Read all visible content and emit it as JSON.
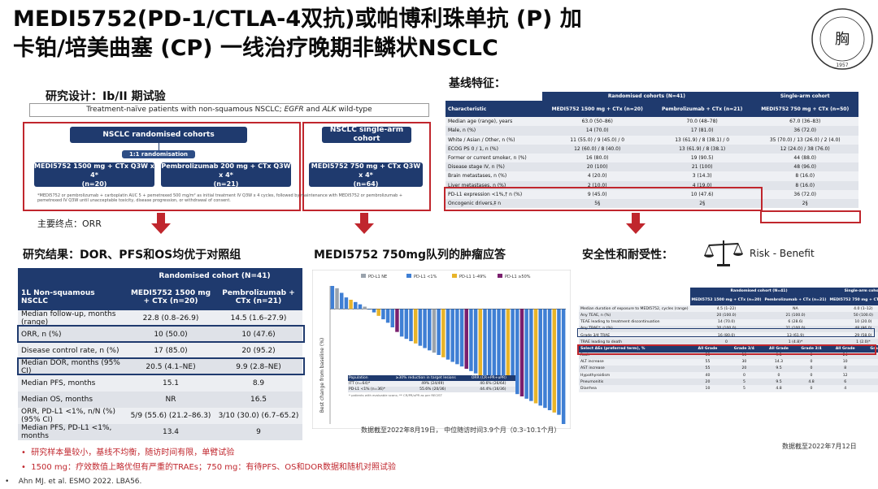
{
  "title": {
    "line1": "MEDI5752(PD-1/CTLA-4双抗)或帕博利珠单抗 (P) 加",
    "line2": "卡铂/培美曲塞 (CP) 一线治疗晚期非鳞状NSCLC"
  },
  "logo": {
    "icon": "shanghai-chest-hospital-seal",
    "year": "1957"
  },
  "design": {
    "heading": "研究设计：Ib/II 期试验",
    "population_pre": "Treatment-naïve patients with non-squamous NSCLC; ",
    "population_egfr": "EGFR",
    "population_and": " and ",
    "population_alk": "ALK",
    "population_post": " wild-type",
    "randomised_label": "NSCLC randomised cohorts",
    "randomisation": "1:1 randomisation",
    "arm_a_l1": "MEDI5752 1500 mg + CTx Q3W x 4*",
    "arm_a_l2": "(n=20)",
    "arm_b_l1": "Pembrolizumab 200 mg + CTx Q3W x 4*",
    "arm_b_l2": "(n=21)",
    "single_label": "NSCLC single-arm cohort",
    "single_l1": "MEDI5752 750 mg + CTx Q3W x 4*",
    "single_l2": "(n=64)",
    "footnote": "*MEDI5752 or pembrolizumab + carboplatin AUC 5 + pemetrexed 500 mg/m² as initial treatment IV Q3W x 4 cycles, followed by maintenance with MEDI5752 or pembrolizumab + pemetrexed IV Q3W until unacceptable toxicity, disease progression, or withdrawal of consent.",
    "endpoint": "主要终点：ORR"
  },
  "results": {
    "heading": "研究结果：DOR、PFS和OS均优于对照组",
    "header_group": "Randomised cohort (N=41)",
    "col0": "1L Non-squamous NSCLC",
    "col1": "MEDI5752 1500 mg + CTx (n=20)",
    "col2": "Pembrolizumab + CTx (n=21)",
    "rows": [
      [
        "Median follow-up, months (range)",
        "22.8 (0.8–26.9)",
        "14.5 (1.6–27.9)"
      ],
      [
        "ORR, n (%)",
        "10 (50.0)",
        "10 (47.6)"
      ],
      [
        "Disease control rate, n (%)",
        "17 (85.0)",
        "20 (95.2)"
      ],
      [
        "Median DOR, months (95% CI)",
        "20.5 (4.1–NE)",
        "9.9 (2.8–NE)"
      ],
      [
        "Median PFS, months",
        "15.1",
        "8.9"
      ],
      [
        "Median OS, months",
        "NR",
        "16.5"
      ],
      [
        "ORR, PD-L1 <1%, n/N (%) (95% CI)",
        "5/9 (55.6) (21.2–86.3)",
        "3/10 (30.0) (6.7–65.2)"
      ],
      [
        "Median PFS, PD-L1 <1%, months",
        "13.4",
        "9"
      ]
    ]
  },
  "waterfall": {
    "heading": "MEDI5752 750mg队列的肿瘤应答",
    "legend": [
      "PD-L1 NE",
      "PD-L1 <1%",
      "PD-L1 1–49%",
      "PD-L1 ≥50%"
    ],
    "ylabel": "Best change from baseline (%)",
    "inset_headers": [
      "Population",
      "≥30% reduction in target lesions",
      "ORR (CR+PR+uPR)"
    ],
    "inset_rows": [
      [
        "ITT (n=64)*",
        "49% (24/49)",
        "40.6% (26/64)"
      ],
      [
        "PD-L1 <1% (n=36)*",
        "55.6% (20/36)",
        "44.4% (16/36)"
      ]
    ],
    "inset_foot": "* patients with evaluable scans; ** CR/PR/uPR as per RECIST",
    "note": "数据截至2022年8月19日， 中位随访时间3.9个月（0.3–10.1个月）"
  },
  "chart_data": {
    "type": "bar",
    "title": "",
    "xlabel": "",
    "ylabel": "Best change from baseline (%)",
    "ylim": [
      -100,
      20
    ],
    "series_colors": {
      "PD-L1 NE": "#9aa3ad",
      "PD-L1 <1%": "#3f7fd4",
      "PD-L1 1–49%": "#e8b429",
      "PD-L1 ≥50%": "#7a1f6e"
    },
    "values": [
      20,
      18,
      14,
      10,
      8,
      6,
      4,
      2,
      0,
      -3,
      -6,
      -9,
      -12,
      -16,
      -20,
      -24,
      -26,
      -28,
      -30,
      -32,
      -34,
      -36,
      -38,
      -40,
      -42,
      -44,
      -46,
      -48,
      -50,
      -52,
      -54,
      -56,
      -58,
      -60,
      -62,
      -64,
      -66,
      -68,
      -70,
      -72,
      -74,
      -76,
      -78,
      -80,
      -82,
      -84,
      -86,
      -88,
      -90,
      -92,
      -100
    ],
    "groups": [
      1,
      0,
      1,
      1,
      2,
      1,
      1,
      0,
      1,
      1,
      2,
      1,
      1,
      1,
      3,
      1,
      1,
      1,
      2,
      1,
      1,
      1,
      0,
      1,
      2,
      1,
      1,
      1,
      1,
      3,
      1,
      1,
      2,
      1,
      1,
      1,
      1,
      1,
      2,
      1,
      1,
      3,
      1,
      1,
      2,
      1,
      1,
      1,
      2,
      1,
      1
    ]
  },
  "baseline": {
    "heading": "基线特征：",
    "group_rand": "Randomised cohorts (N=41)",
    "group_single": "Single-arm cohort",
    "col0": "Characteristic",
    "col1": "MEDI5752 1500 mg + CTx (n=20)",
    "col2": "Pembrolizumab + CTx (n=21)",
    "col3": "MEDI5752 750 mg + CTx (n=50)",
    "rows": [
      [
        "Median age (range), years",
        "63.0 (50–86)",
        "70.0 (48–78)",
        "67.0 (36–83)"
      ],
      [
        "Male, n (%)",
        "14 (70.0)",
        "17 (81.0)",
        "36 (72.0)"
      ],
      [
        "White / Asian / Other, n (%)",
        "11 (55.0) / 9 (45.0) / 0",
        "13 (61.9) / 8 (38.1) / 0",
        "35 (70.0) / 13 (26.0) / 2 (4.0)"
      ],
      [
        "ECOG PS 0 / 1, n (%)",
        "12 (60.0) / 8 (40.0)",
        "13 (61.9) / 8 (38.1)",
        "12 (24.0) / 38 (76.0)"
      ],
      [
        "Former or current smoker, n (%)",
        "16 (80.0)",
        "19 (90.5)",
        "44 (88.0)"
      ],
      [
        "Disease stage IV, n (%)",
        "20 (100)",
        "21 (100)",
        "48 (96.0)"
      ],
      [
        "Brain metastases, n (%)",
        "4 (20.0)",
        "3 (14.3)",
        "8 (16.0)"
      ],
      [
        "Liver metastases, n (%)",
        "2 (10.0)",
        "4 (19.0)",
        "8 (16.0)"
      ],
      [
        "PD-L1 expression <1%,† n (%)",
        "9 (45.0)",
        "10 (47.6)",
        "36 (72.0)"
      ],
      [
        "Oncogenic drivers,‡ n",
        "5§",
        "2§",
        "2§"
      ]
    ]
  },
  "safety": {
    "heading": "安全性和耐受性：",
    "risk_label": "Risk - Benefit",
    "group_rand": "Randomised cohort (N=41)",
    "group_single": "Single-arm cohort",
    "col1": "MEDI5752 1500 mg + CTx (n=20)",
    "col2": "Pembrolizumab + CTx (n=21)",
    "col3": "MEDI5752 750 mg + CTx (n=50)",
    "rows_top": [
      [
        "Median duration of exposure to MEDI5752, cycles (range)",
        "4.5 (1–22)",
        "NA",
        "4.0 (1–12)"
      ],
      [
        "Any TEAE, n (%)",
        "20 (100.0)",
        "21 (100.0)",
        "50 (100.0)"
      ],
      [
        "TEAE leading to treatment discontinuation",
        "14 (70.0)",
        "6 (28.6)",
        "10 (20.0)"
      ],
      [
        "Any TRAE*, n (%)",
        "20 (100.0)",
        "21 (100.0)",
        "48 (96.0)"
      ],
      [
        "Grade 3/4 TRAE",
        "16 (80.0)",
        "13 (61.9)",
        "29 (58.0)"
      ],
      [
        "TRAE leading to death",
        "0",
        "1 (4.8)*",
        "1 (2.0)*"
      ]
    ],
    "sub_header": [
      "Select AEs (preferred term), %",
      "All Grade",
      "Grade 3/4",
      "All Grade",
      "Grade 3/4",
      "All Grade",
      "Grade 3/4"
    ],
    "rows_ae": [
      [
        "Rash",
        "55",
        "10",
        "9.5",
        "0",
        "24",
        "2"
      ],
      [
        "ALT increase",
        "55",
        "30",
        "14.3",
        "0",
        "10",
        "2"
      ],
      [
        "AST increase",
        "55",
        "20",
        "9.5",
        "0",
        "8",
        "2"
      ],
      [
        "Hypothyroidism",
        "40",
        "0",
        "0",
        "0",
        "12",
        "0"
      ],
      [
        "Pneumonitis",
        "20",
        "5",
        "9.5",
        "4.8",
        "6",
        "2"
      ],
      [
        "Diarrhea",
        "10",
        "5",
        "4.8",
        "0",
        "4",
        "2"
      ]
    ],
    "note": "数据截至2022年7月12日"
  },
  "bullets": [
    "研究样本量较小，基线不均衡，随访时间有限，单臂试验",
    "1500 mg：疗效数值上略优但有严重的TRAEs；750 mg：有待PFS、OS和DOR数据和随机对照试验"
  ],
  "citation": "Ahn MJ. et al. ESMO 2022. LBA56."
}
